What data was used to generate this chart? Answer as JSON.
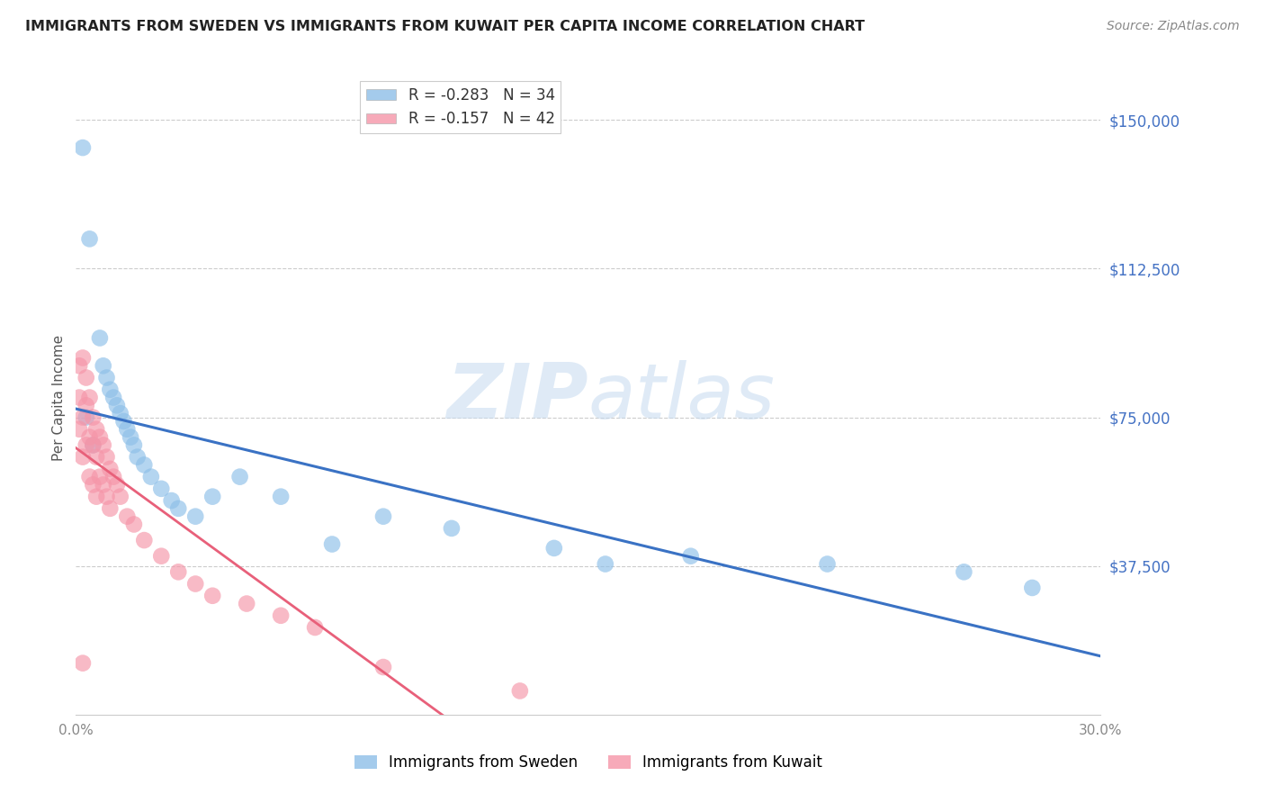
{
  "title": "IMMIGRANTS FROM SWEDEN VS IMMIGRANTS FROM KUWAIT PER CAPITA INCOME CORRELATION CHART",
  "source": "Source: ZipAtlas.com",
  "ylabel": "Per Capita Income",
  "xmin": 0.0,
  "xmax": 0.3,
  "ymin": 0,
  "ymax": 160000,
  "sweden_color": "#8dbfe8",
  "kuwait_color": "#f595a8",
  "sweden_line_color": "#3a72c4",
  "kuwait_line_color": "#e8607a",
  "sweden_R": -0.283,
  "sweden_N": 34,
  "kuwait_R": -0.157,
  "kuwait_N": 42,
  "legend_label_sweden": "Immigrants from Sweden",
  "legend_label_kuwait": "Immigrants from Kuwait",
  "watermark_zip": "ZIP",
  "watermark_atlas": "atlas",
  "sweden_x": [
    0.002,
    0.004,
    0.007,
    0.008,
    0.009,
    0.01,
    0.011,
    0.012,
    0.013,
    0.014,
    0.015,
    0.016,
    0.017,
    0.018,
    0.02,
    0.022,
    0.025,
    0.028,
    0.03,
    0.035,
    0.04,
    0.048,
    0.06,
    0.075,
    0.09,
    0.11,
    0.14,
    0.155,
    0.18,
    0.22,
    0.26,
    0.28,
    0.003,
    0.005
  ],
  "sweden_y": [
    143000,
    120000,
    95000,
    88000,
    85000,
    82000,
    80000,
    78000,
    76000,
    74000,
    72000,
    70000,
    68000,
    65000,
    63000,
    60000,
    57000,
    54000,
    52000,
    50000,
    55000,
    60000,
    55000,
    43000,
    50000,
    47000,
    42000,
    38000,
    40000,
    38000,
    36000,
    32000,
    75000,
    68000
  ],
  "kuwait_x": [
    0.001,
    0.001,
    0.001,
    0.002,
    0.002,
    0.002,
    0.003,
    0.003,
    0.003,
    0.004,
    0.004,
    0.004,
    0.005,
    0.005,
    0.005,
    0.006,
    0.006,
    0.006,
    0.007,
    0.007,
    0.008,
    0.008,
    0.009,
    0.009,
    0.01,
    0.01,
    0.011,
    0.012,
    0.013,
    0.015,
    0.017,
    0.02,
    0.025,
    0.03,
    0.035,
    0.04,
    0.05,
    0.06,
    0.07,
    0.09,
    0.13,
    0.002
  ],
  "kuwait_y": [
    88000,
    80000,
    72000,
    90000,
    75000,
    65000,
    85000,
    78000,
    68000,
    80000,
    70000,
    60000,
    75000,
    68000,
    58000,
    72000,
    65000,
    55000,
    70000,
    60000,
    68000,
    58000,
    65000,
    55000,
    62000,
    52000,
    60000,
    58000,
    55000,
    50000,
    48000,
    44000,
    40000,
    36000,
    33000,
    30000,
    28000,
    25000,
    22000,
    12000,
    6000,
    13000
  ]
}
